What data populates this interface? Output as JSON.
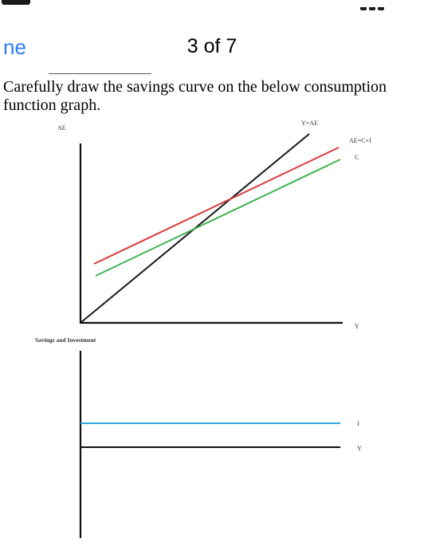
{
  "header": {
    "nav_fragment": "ne",
    "page_counter": "3 of 7"
  },
  "question": {
    "text": "Carefully draw the savings curve on the below consumption function graph."
  },
  "consumption_graph": {
    "y_axis_label": "AE",
    "x_axis_label": "Y",
    "lines": [
      {
        "label": "Y=AE",
        "color": "#1a1a1a"
      },
      {
        "label": "AE=C+I",
        "color": "#d93a3a"
      },
      {
        "label": "C",
        "color": "#3fb24f"
      }
    ]
  },
  "savings_graph": {
    "y_axis_label": "Savings and Investment",
    "x_axis_label": "Y",
    "lines": [
      {
        "label": "I",
        "color": "#2fa8e0"
      }
    ]
  }
}
